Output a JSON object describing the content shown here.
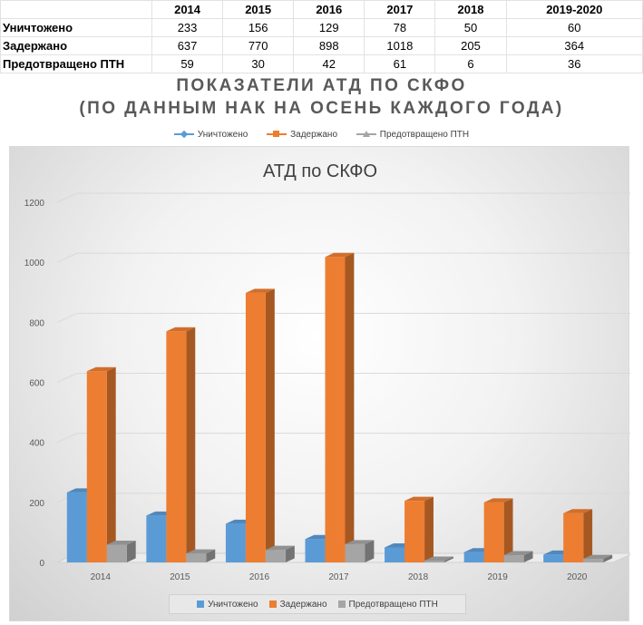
{
  "table": {
    "columns": [
      "2014",
      "2015",
      "2016",
      "2017",
      "2018",
      "2019-2020"
    ],
    "rows": [
      {
        "label": "Уничтожено",
        "values": [
          "233",
          "156",
          "129",
          "78",
          "50",
          "60"
        ]
      },
      {
        "label": "Задержано",
        "values": [
          "637",
          "770",
          "898",
          "1018",
          "205",
          "364"
        ]
      },
      {
        "label": "Предотвращено ПТН",
        "values": [
          "59",
          "30",
          "42",
          "61",
          "6",
          "36"
        ]
      }
    ]
  },
  "outer_title": {
    "line1": "ПОКАЗАТЕЛИ АТД ПО СКФО",
    "line2": "(ПО ДАННЫМ НАК НА ОСЕНЬ КАЖДОГО ГОДА)"
  },
  "colors": {
    "uni": "#5b9bd5",
    "zad": "#ed7d31",
    "ptn": "#a5a5a5"
  },
  "top_legend": [
    {
      "label": "Уничтожено",
      "marker": "diamond",
      "color": "#5b9bd5"
    },
    {
      "label": "Задержано",
      "marker": "square",
      "color": "#ed7d31"
    },
    {
      "label": "Предотвращено ПТН",
      "marker": "triangle",
      "color": "#a5a5a5"
    }
  ],
  "chart_data": {
    "type": "bar",
    "title": "АТД по СКФО",
    "categories": [
      "2014",
      "2015",
      "2016",
      "2017",
      "2018",
      "2019",
      "2020"
    ],
    "series": [
      {
        "name": "Уничтожено",
        "color": "#5b9bd5",
        "values": [
          233,
          156,
          129,
          78,
          50,
          34,
          26
        ]
      },
      {
        "name": "Задержано",
        "color": "#ed7d31",
        "values": [
          637,
          770,
          898,
          1018,
          205,
          200,
          164
        ]
      },
      {
        "name": "Предотвращено ПТН",
        "color": "#a5a5a5",
        "values": [
          59,
          30,
          42,
          61,
          6,
          24,
          12
        ]
      }
    ],
    "ylim": [
      0,
      1200
    ],
    "yticks": [
      "0",
      "200",
      "400",
      "600",
      "800",
      "1000",
      "1200"
    ],
    "grid": true,
    "legend_position": "bottom"
  }
}
